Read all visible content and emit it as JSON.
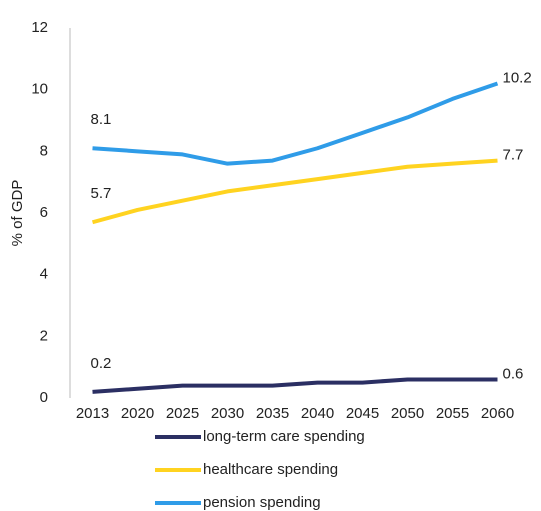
{
  "chart_data": {
    "type": "line",
    "y_label": "% of GDP",
    "categories": [
      "2013",
      "2020",
      "2025",
      "2030",
      "2035",
      "2040",
      "2045",
      "2050",
      "2055",
      "2060"
    ],
    "series": [
      {
        "name": "long-term care spending",
        "color": "#2b2f63",
        "values": [
          0.2,
          0.3,
          0.4,
          0.4,
          0.4,
          0.5,
          0.5,
          0.6,
          0.6,
          0.6
        ]
      },
      {
        "name": "healthcare spending",
        "color": "#ffd320",
        "values": [
          5.7,
          6.1,
          6.4,
          6.7,
          6.9,
          7.1,
          7.3,
          7.5,
          7.6,
          7.7
        ]
      },
      {
        "name": "pension spending",
        "color": "#2f9ce8",
        "values": [
          8.1,
          8.0,
          7.9,
          7.6,
          7.7,
          8.1,
          8.6,
          9.1,
          9.7,
          10.2
        ]
      }
    ],
    "data_labels": "first-last",
    "ylim": [
      0,
      12
    ],
    "yticks": [
      0,
      2,
      4,
      6,
      8,
      10,
      12
    ],
    "grid": false,
    "legend": "bottom"
  }
}
